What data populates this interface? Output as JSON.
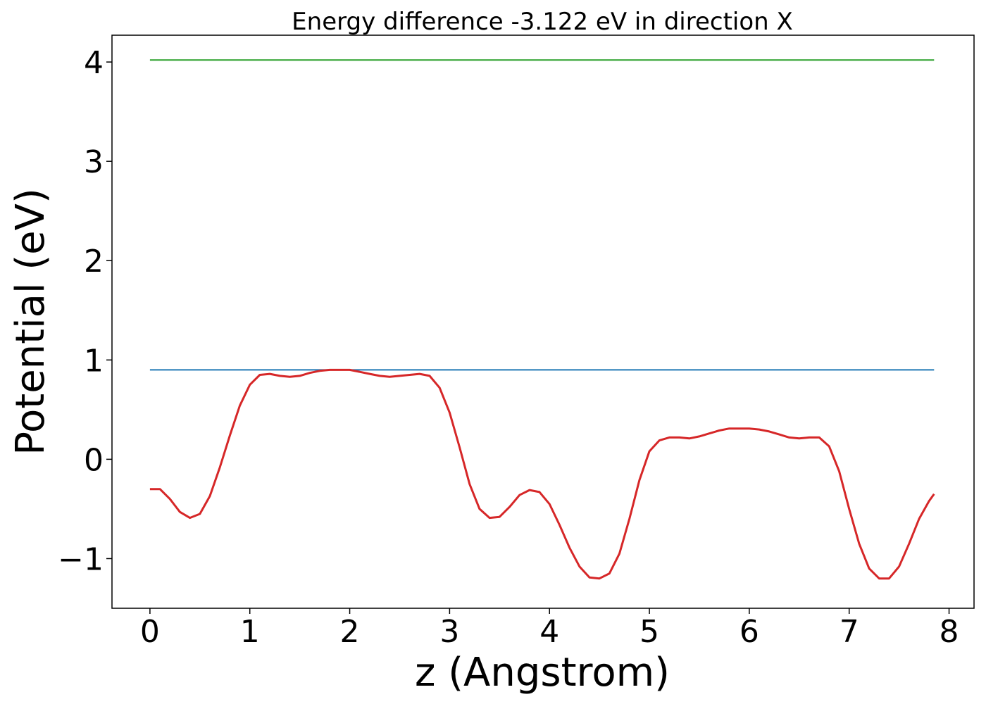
{
  "chart_data": {
    "type": "line",
    "title": "Energy difference -3.122 eV in direction X",
    "xlabel": "z (Angstrom)",
    "ylabel": "Potential (eV)",
    "xlim": [
      -0.38,
      8.25
    ],
    "ylim": [
      -1.5,
      4.27
    ],
    "xticks": [
      0,
      1,
      2,
      3,
      4,
      5,
      6,
      7,
      8
    ],
    "yticks": [
      -1,
      0,
      1,
      2,
      3,
      4
    ],
    "xtick_labels": [
      "0",
      "1",
      "2",
      "3",
      "4",
      "5",
      "6",
      "7",
      "8"
    ],
    "ytick_labels": [
      "−1",
      "0",
      "1",
      "2",
      "3",
      "4"
    ],
    "grid": false,
    "legend": "none",
    "series": [
      {
        "color": "#2ca02c",
        "x": [
          0,
          7.85
        ],
        "y": [
          4.02,
          4.02
        ]
      },
      {
        "color": "#1f77b4",
        "x": [
          0,
          7.85
        ],
        "y": [
          0.9,
          0.9
        ]
      },
      {
        "color": "#d62728",
        "x": [
          0,
          0.1,
          0.2,
          0.3,
          0.4,
          0.5,
          0.6,
          0.7,
          0.8,
          0.9,
          1.0,
          1.1,
          1.2,
          1.3,
          1.4,
          1.5,
          1.6,
          1.7,
          1.8,
          1.9,
          2.0,
          2.1,
          2.2,
          2.3,
          2.4,
          2.5,
          2.6,
          2.7,
          2.8,
          2.9,
          3.0,
          3.1,
          3.2,
          3.3,
          3.4,
          3.5,
          3.6,
          3.7,
          3.8,
          3.9,
          4.0,
          4.1,
          4.2,
          4.3,
          4.4,
          4.5,
          4.6,
          4.7,
          4.8,
          4.9,
          5.0,
          5.1,
          5.2,
          5.3,
          5.4,
          5.5,
          5.6,
          5.7,
          5.8,
          5.9,
          6.0,
          6.1,
          6.2,
          6.3,
          6.4,
          6.5,
          6.6,
          6.7,
          6.8,
          6.9,
          7.0,
          7.1,
          7.2,
          7.3,
          7.4,
          7.5,
          7.6,
          7.7,
          7.8,
          7.85
        ],
        "y": [
          -0.3,
          -0.3,
          -0.4,
          -0.53,
          -0.59,
          -0.55,
          -0.37,
          -0.08,
          0.24,
          0.54,
          0.75,
          0.85,
          0.86,
          0.84,
          0.83,
          0.84,
          0.87,
          0.89,
          0.9,
          0.9,
          0.9,
          0.88,
          0.86,
          0.84,
          0.83,
          0.84,
          0.85,
          0.86,
          0.84,
          0.72,
          0.47,
          0.12,
          -0.25,
          -0.5,
          -0.59,
          -0.58,
          -0.48,
          -0.36,
          -0.31,
          -0.33,
          -0.45,
          -0.66,
          -0.89,
          -1.08,
          -1.19,
          -1.2,
          -1.15,
          -0.95,
          -0.6,
          -0.21,
          0.08,
          0.19,
          0.22,
          0.22,
          0.21,
          0.23,
          0.26,
          0.29,
          0.31,
          0.31,
          0.31,
          0.3,
          0.28,
          0.25,
          0.22,
          0.21,
          0.22,
          0.22,
          0.13,
          -0.12,
          -0.5,
          -0.85,
          -1.1,
          -1.2,
          -1.2,
          -1.08,
          -0.85,
          -0.6,
          -0.42,
          -0.35
        ]
      }
    ]
  }
}
